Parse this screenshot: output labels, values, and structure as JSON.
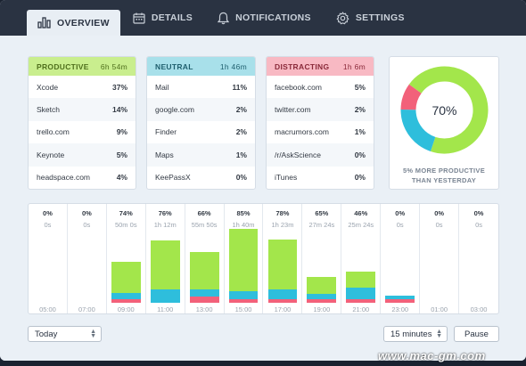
{
  "tabs": [
    {
      "label": "OVERVIEW",
      "icon": "bar-chart-icon",
      "active": true
    },
    {
      "label": "DETAILS",
      "icon": "calendar-icon",
      "active": false
    },
    {
      "label": "NOTIFICATIONS",
      "icon": "bell-icon",
      "active": false
    },
    {
      "label": "SETTINGS",
      "icon": "gear-icon",
      "active": false
    }
  ],
  "categories": {
    "productive": {
      "label": "PRODUCTIVE",
      "time": "6h 54m",
      "color": "#c9ee8e",
      "rows": [
        {
          "name": "Xcode",
          "value": "37%"
        },
        {
          "name": "Sketch",
          "value": "14%"
        },
        {
          "name": "trello.com",
          "value": "9%"
        },
        {
          "name": "Keynote",
          "value": "5%"
        },
        {
          "name": "headspace.com",
          "value": "4%"
        }
      ]
    },
    "neutral": {
      "label": "NEUTRAL",
      "time": "1h 46m",
      "color": "#a8e0ea",
      "rows": [
        {
          "name": "Mail",
          "value": "11%"
        },
        {
          "name": "google.com",
          "value": "2%"
        },
        {
          "name": "Finder",
          "value": "2%"
        },
        {
          "name": "Maps",
          "value": "1%"
        },
        {
          "name": "KeePassX",
          "value": "0%"
        }
      ]
    },
    "distracting": {
      "label": "DISTRACTING",
      "time": "1h 6m",
      "color": "#f8b9c3",
      "rows": [
        {
          "name": "facebook.com",
          "value": "5%"
        },
        {
          "name": "twitter.com",
          "value": "2%"
        },
        {
          "name": "macrumors.com",
          "value": "1%"
        },
        {
          "name": "/r/AskScience",
          "value": "0%"
        },
        {
          "name": "iTunes",
          "value": "0%"
        }
      ]
    }
  },
  "summary": {
    "percent_label": "70%",
    "donut": {
      "productive": 70,
      "neutral": 20,
      "distracting": 10
    },
    "message_line1": "5% MORE PRODUCTIVE",
    "message_line2": "THAN YESTERDAY"
  },
  "colors": {
    "productive": "#a3e64b",
    "neutral": "#2ebedc",
    "distracting": "#f2617a"
  },
  "timeline": [
    {
      "percent": "0%",
      "duration": "0s",
      "hour": "05:00",
      "productive": 0,
      "neutral": 0,
      "distracting": 0
    },
    {
      "percent": "0%",
      "duration": "0s",
      "hour": "07:00",
      "productive": 0,
      "neutral": 0,
      "distracting": 0
    },
    {
      "percent": "74%",
      "duration": "50m 0s",
      "hour": "09:00",
      "productive": 0.5,
      "neutral": 0.1,
      "distracting": 0.06
    },
    {
      "percent": "76%",
      "duration": "1h 12m",
      "hour": "11:00",
      "productive": 0.78,
      "neutral": 0.22,
      "distracting": 0.0
    },
    {
      "percent": "66%",
      "duration": "55m 50s",
      "hour": "13:00",
      "productive": 0.6,
      "neutral": 0.12,
      "distracting": 0.1
    },
    {
      "percent": "85%",
      "duration": "1h 40m",
      "hour": "15:00",
      "productive": 1.0,
      "neutral": 0.12,
      "distracting": 0.06
    },
    {
      "percent": "78%",
      "duration": "1h 23m",
      "hour": "17:00",
      "productive": 0.8,
      "neutral": 0.16,
      "distracting": 0.06
    },
    {
      "percent": "65%",
      "duration": "27m 24s",
      "hour": "19:00",
      "productive": 0.28,
      "neutral": 0.08,
      "distracting": 0.06
    },
    {
      "percent": "46%",
      "duration": "25m 24s",
      "hour": "21:00",
      "productive": 0.26,
      "neutral": 0.18,
      "distracting": 0.06
    },
    {
      "percent": "0%",
      "duration": "0s",
      "hour": "23:00",
      "productive": 0.0,
      "neutral": 0.06,
      "distracting": 0.06
    },
    {
      "percent": "0%",
      "duration": "0s",
      "hour": "01:00",
      "productive": 0,
      "neutral": 0,
      "distracting": 0
    },
    {
      "percent": "0%",
      "duration": "0s",
      "hour": "03:00",
      "productive": 0,
      "neutral": 0,
      "distracting": 0
    }
  ],
  "controls": {
    "range_value": "Today",
    "interval_value": "15 minutes",
    "pause_label": "Pause"
  },
  "watermark": "www.mac-gm.com"
}
